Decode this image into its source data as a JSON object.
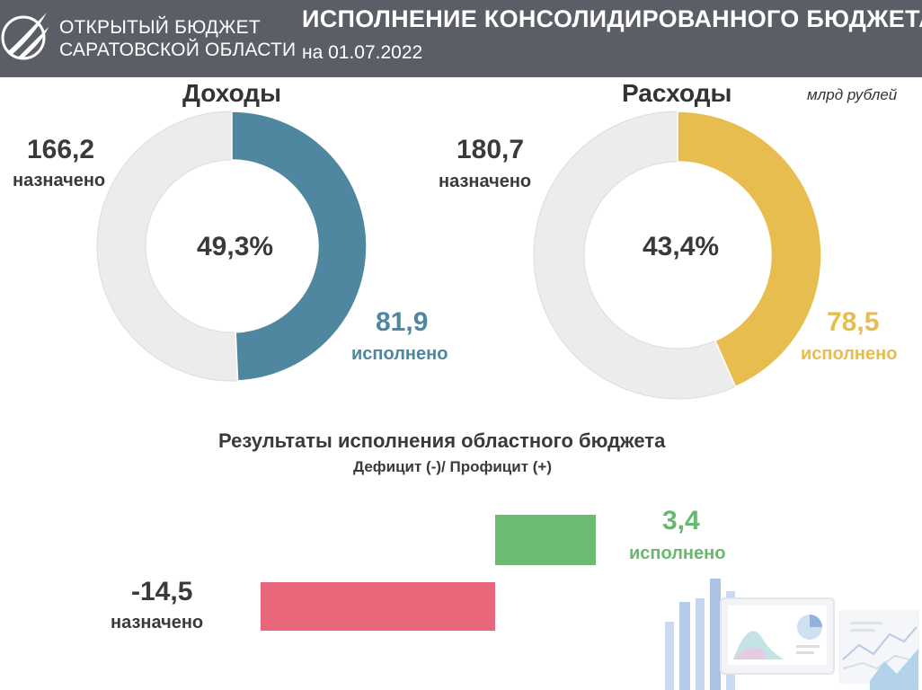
{
  "header": {
    "org_line1": "ОТКРЫТЫЙ БЮДЖЕТ",
    "org_line2": "САРАТОВСКОЙ ОБЛАСТИ",
    "title": "ИСПОЛНЕНИЕ КОНСОЛИДИРОВАННОГО БЮДЖЕТА",
    "date": "на 01.07.2022",
    "logo_icon": "swoosh-logo-icon"
  },
  "units": "млрд рублей",
  "colors": {
    "header_bg": "#5b5e66",
    "income": "#4f87a0",
    "expense": "#e8bd4f",
    "remainder": "#ececec",
    "surplus": "#6dbb73",
    "deficit": "#e8667a"
  },
  "chart_data": [
    {
      "type": "pie",
      "title": "Доходы",
      "planned": 166.2,
      "executed": 81.9,
      "percent": 49.3,
      "percent_label": "49,3%",
      "planned_value_label": "166,2",
      "planned_label": "назначено",
      "executed_value_label": "81,9",
      "executed_label": "исполнено"
    },
    {
      "type": "pie",
      "title": "Расходы",
      "planned": 180.7,
      "executed": 78.5,
      "percent": 43.4,
      "percent_label": "43,4%",
      "planned_value_label": "180,7",
      "planned_label": "назначено",
      "executed_value_label": "78,5",
      "executed_label": "исполнено"
    },
    {
      "type": "bar",
      "title": "Результаты исполнения  областного бюджета",
      "subtitle": "Дефицит (-)/  Профицит (+)",
      "categories": [
        "исполнено",
        "назначено"
      ],
      "values": [
        3.4,
        -14.5
      ],
      "value_labels": [
        "3,4",
        "-14,5"
      ]
    }
  ]
}
